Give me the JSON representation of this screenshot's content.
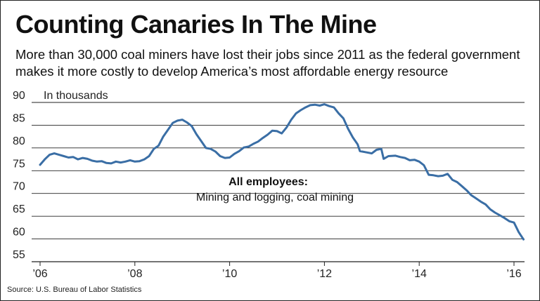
{
  "title": "Counting Canaries In The Mine",
  "subtitle": "More than 30,000 coal miners have lost their jobs since 2011 as the federal government makes it more costly to develop America’s most affordable energy resource",
  "source": "Source: U.S. Bureau of Labor Statistics",
  "colors": {
    "line": "#3a6ea5",
    "grid": "#222222"
  },
  "chart_data": {
    "type": "line",
    "unit_label": "In thousands",
    "series_label_line1": "All employees:",
    "series_label_line2": "Mining and logging, coal mining",
    "ylim": [
      55,
      90
    ],
    "yticks": [
      55,
      60,
      65,
      70,
      75,
      80,
      85,
      90
    ],
    "xlim": [
      2006,
      2016.3
    ],
    "xticks": [
      {
        "value": 2006,
        "label": "’06"
      },
      {
        "value": 2008,
        "label": "’08"
      },
      {
        "value": 2010,
        "label": "’10"
      },
      {
        "value": 2012,
        "label": "’12"
      },
      {
        "value": 2014,
        "label": "’14"
      },
      {
        "value": 2016,
        "label": "’16"
      }
    ],
    "grid": true,
    "series": [
      {
        "points": [
          [
            2006.0,
            76.3
          ],
          [
            2006.1,
            77.5
          ],
          [
            2006.2,
            78.5
          ],
          [
            2006.3,
            78.8
          ],
          [
            2006.4,
            78.5
          ],
          [
            2006.5,
            78.2
          ],
          [
            2006.6,
            77.9
          ],
          [
            2006.7,
            78.0
          ],
          [
            2006.8,
            77.5
          ],
          [
            2006.9,
            77.8
          ],
          [
            2007.0,
            77.6
          ],
          [
            2007.1,
            77.2
          ],
          [
            2007.2,
            77.0
          ],
          [
            2007.3,
            77.1
          ],
          [
            2007.4,
            76.7
          ],
          [
            2007.5,
            76.6
          ],
          [
            2007.6,
            77.0
          ],
          [
            2007.7,
            76.8
          ],
          [
            2007.8,
            77.0
          ],
          [
            2007.9,
            77.3
          ],
          [
            2008.0,
            77.0
          ],
          [
            2008.1,
            77.1
          ],
          [
            2008.2,
            77.5
          ],
          [
            2008.3,
            78.2
          ],
          [
            2008.4,
            79.8
          ],
          [
            2008.5,
            80.5
          ],
          [
            2008.6,
            82.5
          ],
          [
            2008.7,
            84.0
          ],
          [
            2008.8,
            85.5
          ],
          [
            2008.9,
            86.0
          ],
          [
            2009.0,
            86.2
          ],
          [
            2009.1,
            85.6
          ],
          [
            2009.2,
            84.8
          ],
          [
            2009.3,
            83.0
          ],
          [
            2009.4,
            81.5
          ],
          [
            2009.5,
            80.0
          ],
          [
            2009.6,
            79.8
          ],
          [
            2009.7,
            79.2
          ],
          [
            2009.8,
            78.2
          ],
          [
            2009.9,
            77.8
          ],
          [
            2010.0,
            77.9
          ],
          [
            2010.1,
            78.7
          ],
          [
            2010.2,
            79.3
          ],
          [
            2010.3,
            80.1
          ],
          [
            2010.4,
            80.3
          ],
          [
            2010.5,
            80.9
          ],
          [
            2010.6,
            81.4
          ],
          [
            2010.7,
            82.2
          ],
          [
            2010.8,
            82.9
          ],
          [
            2010.9,
            83.8
          ],
          [
            2011.0,
            83.7
          ],
          [
            2011.1,
            83.2
          ],
          [
            2011.2,
            84.5
          ],
          [
            2011.3,
            86.2
          ],
          [
            2011.4,
            87.6
          ],
          [
            2011.5,
            88.3
          ],
          [
            2011.6,
            88.9
          ],
          [
            2011.7,
            89.4
          ],
          [
            2011.8,
            89.5
          ],
          [
            2011.9,
            89.3
          ],
          [
            2012.0,
            89.6
          ],
          [
            2012.1,
            89.2
          ],
          [
            2012.2,
            88.9
          ],
          [
            2012.3,
            87.6
          ],
          [
            2012.4,
            86.5
          ],
          [
            2012.5,
            84.2
          ],
          [
            2012.6,
            82.3
          ],
          [
            2012.7,
            80.8
          ],
          [
            2012.75,
            79.3
          ],
          [
            2012.9,
            79.0
          ],
          [
            2013.0,
            78.8
          ],
          [
            2013.1,
            79.6
          ],
          [
            2013.2,
            79.8
          ],
          [
            2013.25,
            77.6
          ],
          [
            2013.35,
            78.2
          ],
          [
            2013.5,
            78.3
          ],
          [
            2013.6,
            78.0
          ],
          [
            2013.7,
            77.8
          ],
          [
            2013.8,
            77.3
          ],
          [
            2013.9,
            77.4
          ],
          [
            2014.0,
            77.0
          ],
          [
            2014.1,
            76.2
          ],
          [
            2014.2,
            74.1
          ],
          [
            2014.3,
            74.0
          ],
          [
            2014.4,
            73.8
          ],
          [
            2014.5,
            73.9
          ],
          [
            2014.6,
            74.3
          ],
          [
            2014.7,
            73.0
          ],
          [
            2014.8,
            72.5
          ],
          [
            2014.9,
            71.6
          ],
          [
            2015.0,
            70.7
          ],
          [
            2015.1,
            69.6
          ],
          [
            2015.2,
            68.9
          ],
          [
            2015.3,
            68.2
          ],
          [
            2015.4,
            67.6
          ],
          [
            2015.5,
            66.5
          ],
          [
            2015.6,
            65.8
          ],
          [
            2015.7,
            65.2
          ],
          [
            2015.8,
            64.6
          ],
          [
            2015.9,
            63.9
          ],
          [
            2016.0,
            63.6
          ],
          [
            2016.1,
            61.5
          ],
          [
            2016.2,
            59.9
          ]
        ]
      }
    ]
  }
}
